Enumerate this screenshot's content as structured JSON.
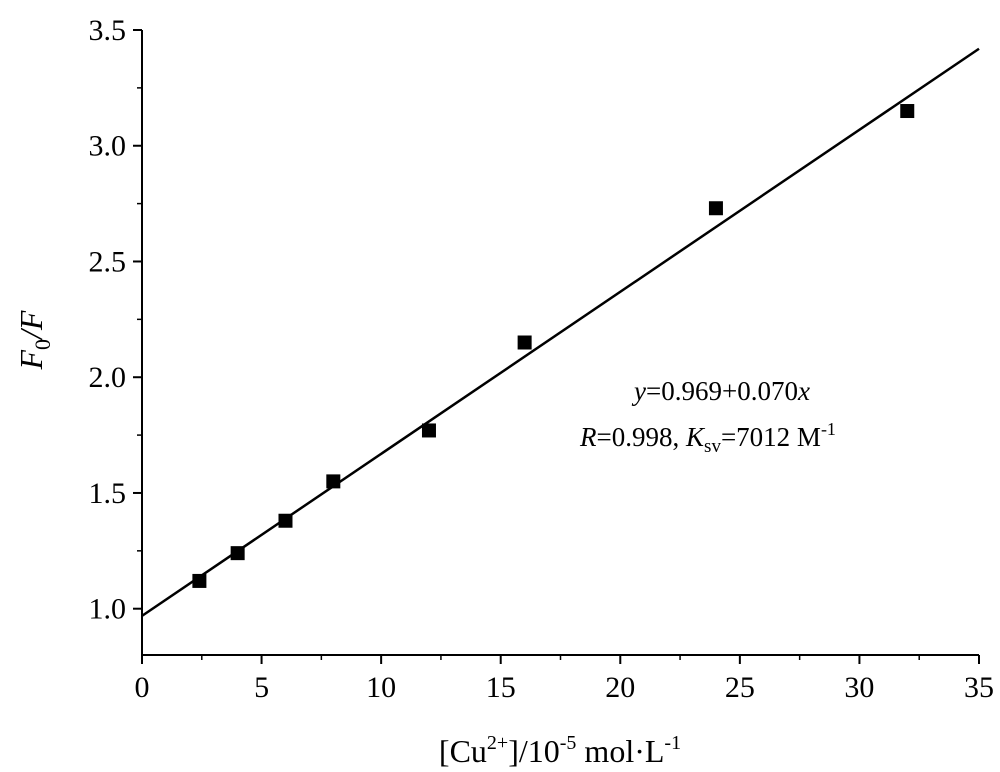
{
  "chart_data": {
    "type": "scatter",
    "title": "",
    "xlabel": {
      "prefix": "[Cu",
      "sup": "2+",
      "mid": "]/10",
      "exp": "-5",
      "unit": " mol·L",
      "unit_exp": "-1"
    },
    "ylabel": {
      "main": "F",
      "sub": "0",
      "rest": "/F"
    },
    "xlim": [
      0,
      35
    ],
    "ylim": [
      0.8,
      3.5
    ],
    "x_ticks": [
      "0",
      "5",
      "10",
      "15",
      "20",
      "25",
      "30",
      "35"
    ],
    "y_ticks": [
      "1.0",
      "1.5",
      "2.0",
      "2.5",
      "3.0",
      "3.5"
    ],
    "grid": false,
    "series": [
      {
        "points": [
          {
            "x": 2.4,
            "y": 1.12
          },
          {
            "x": 4,
            "y": 1.24
          },
          {
            "x": 6,
            "y": 1.38
          },
          {
            "x": 8,
            "y": 1.55
          },
          {
            "x": 12,
            "y": 1.77
          },
          {
            "x": 16,
            "y": 2.15
          },
          {
            "x": 24,
            "y": 2.73
          },
          {
            "x": 32,
            "y": 3.15
          }
        ],
        "marker": "square",
        "color": "#000000"
      }
    ],
    "fit_line": {
      "intercept": 0.969,
      "slope": 0.07,
      "x_range": [
        0,
        35
      ],
      "color": "#000000"
    },
    "annotations": {
      "equation": {
        "y": "y",
        "rest": "=0.969+0.070",
        "x": "x"
      },
      "stats": {
        "r": "R",
        "r_rest": "=0.998, ",
        "k": "K",
        "k_sub": "sv",
        "k_rest": "=7012 M",
        "k_exp": "-1"
      }
    }
  }
}
